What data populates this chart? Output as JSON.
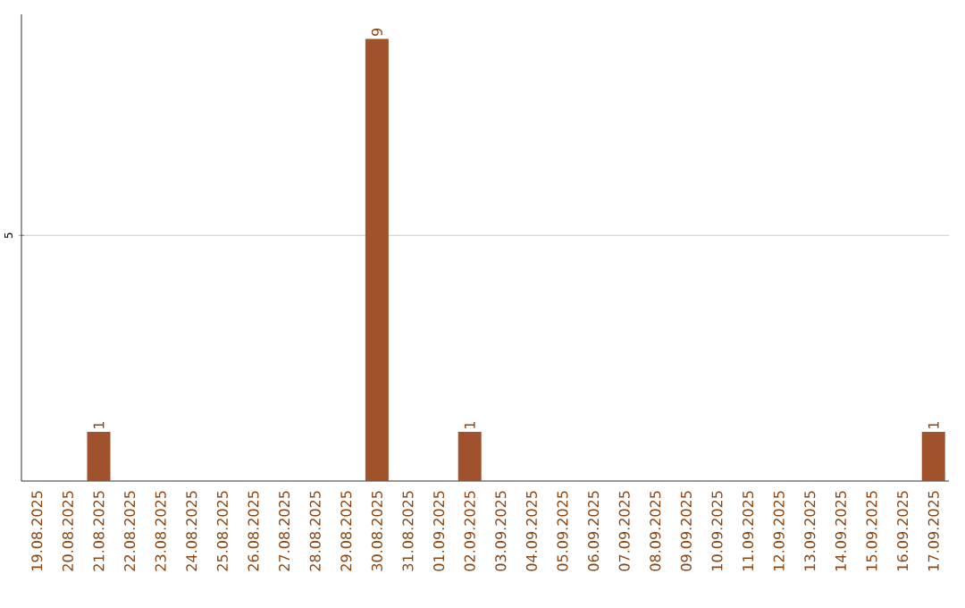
{
  "chart_data": {
    "type": "bar",
    "categories": [
      "19.08.2025",
      "20.08.2025",
      "21.08.2025",
      "22.08.2025",
      "23.08.2025",
      "24.08.2025",
      "25.08.2025",
      "26.08.2025",
      "27.08.2025",
      "28.08.2025",
      "29.08.2025",
      "30.08.2025",
      "31.08.2025",
      "01.09.2025",
      "02.09.2025",
      "03.09.2025",
      "04.09.2025",
      "05.09.2025",
      "06.09.2025",
      "07.09.2025",
      "08.09.2025",
      "09.09.2025",
      "10.09.2025",
      "11.09.2025",
      "12.09.2025",
      "13.09.2025",
      "14.09.2025",
      "15.09.2025",
      "16.09.2025",
      "17.09.2025"
    ],
    "values": [
      0,
      0,
      1,
      0,
      0,
      0,
      0,
      0,
      0,
      0,
      0,
      9,
      0,
      0,
      1,
      0,
      0,
      0,
      0,
      0,
      0,
      0,
      0,
      0,
      0,
      0,
      0,
      0,
      0,
      1
    ],
    "value_labels": [
      null,
      null,
      "1",
      null,
      null,
      null,
      null,
      null,
      null,
      null,
      null,
      "9",
      null,
      null,
      "1",
      null,
      null,
      null,
      null,
      null,
      null,
      null,
      null,
      null,
      null,
      null,
      null,
      null,
      null,
      "1"
    ],
    "color": "#a0522d",
    "ylim": [
      0,
      9.5
    ],
    "yticks": [
      5
    ],
    "grid": "y"
  }
}
